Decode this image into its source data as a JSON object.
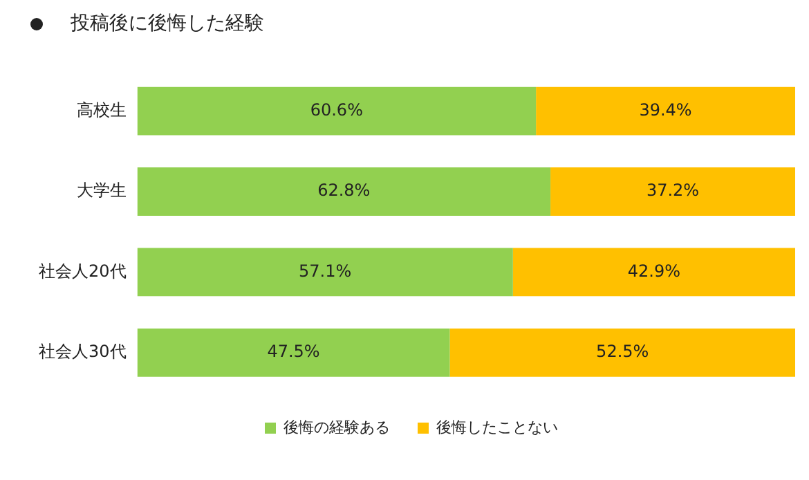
{
  "chart_data": {
    "type": "bar",
    "orientation": "horizontal",
    "stacked": true,
    "title": "投稿後に後悔した経験",
    "categories": [
      "高校生",
      "大学生",
      "社会人20代",
      "社会人30代"
    ],
    "xlim": [
      0,
      100
    ],
    "tick_labels": "y",
    "grid": false,
    "legend": "bottom",
    "series": [
      {
        "name": "後悔の経験ある",
        "color": "#92d050",
        "values": [
          60.6,
          62.8,
          57.1,
          47.5
        ],
        "value_labels": [
          "60.6%",
          "62.8%",
          "57.1%",
          "47.5%"
        ]
      },
      {
        "name": "後悔したことない",
        "color": "#ffc000",
        "values": [
          39.4,
          37.2,
          42.9,
          52.5
        ],
        "value_labels": [
          "39.4%",
          "37.2%",
          "42.9%",
          "52.5%"
        ]
      }
    ]
  }
}
